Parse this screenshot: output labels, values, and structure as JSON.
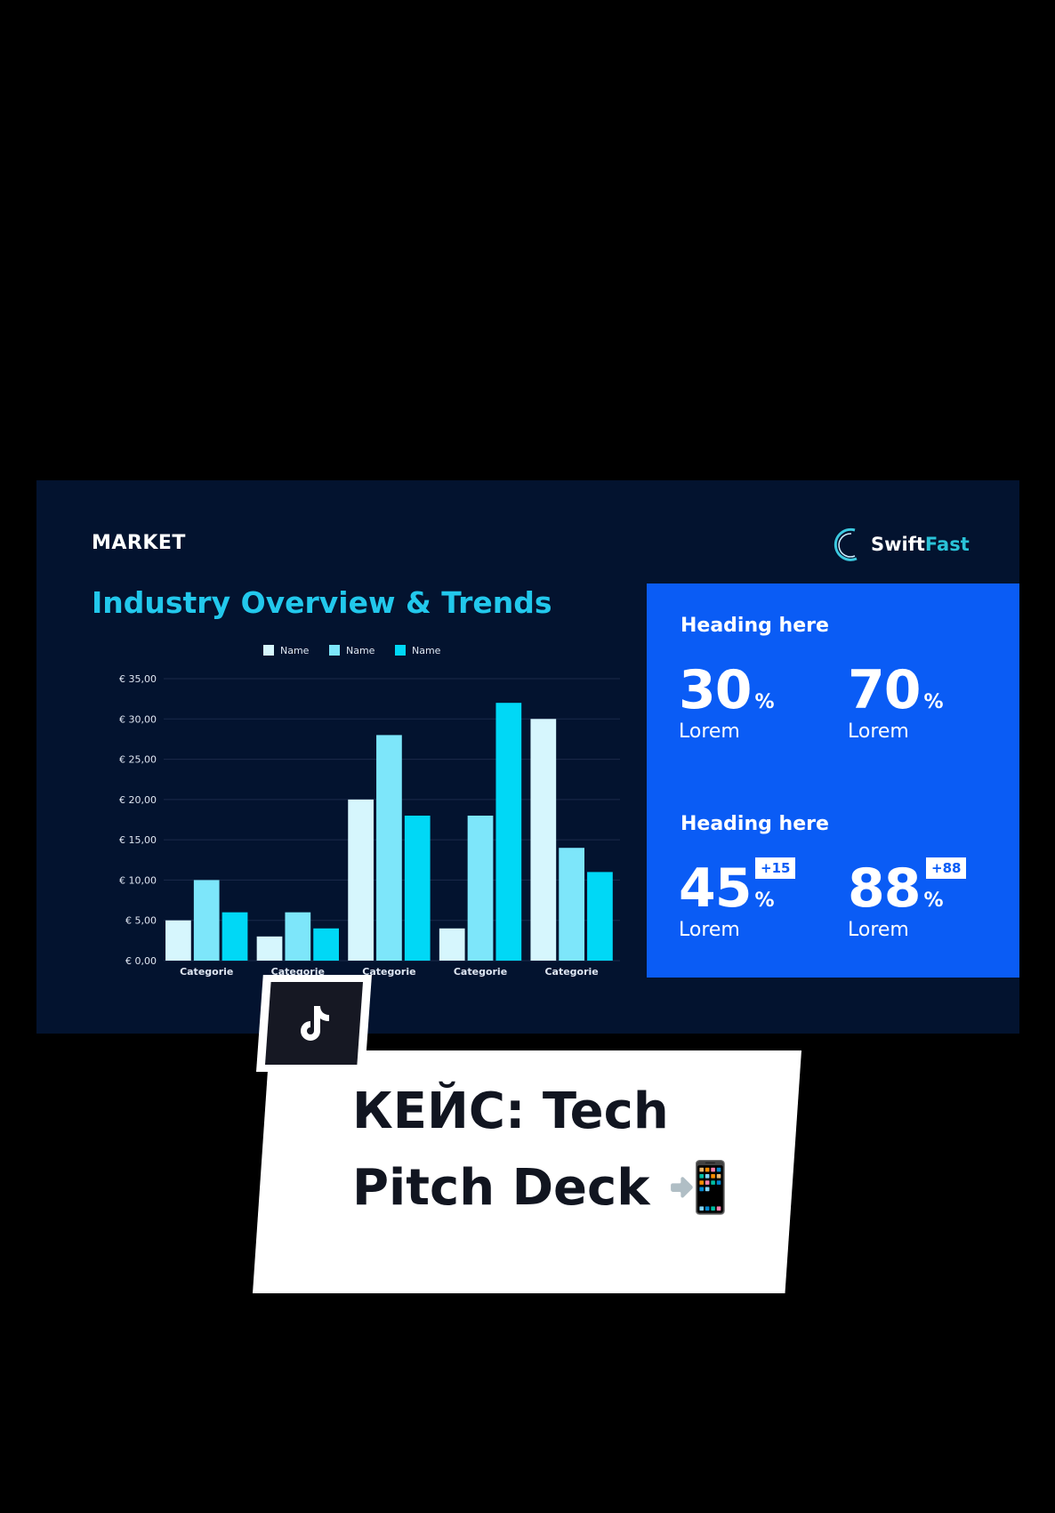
{
  "slide": {
    "section_label": "MARKET",
    "title": "Industry Overview & Trends",
    "logo": {
      "part1": "Swift",
      "part2": "Fast"
    },
    "panel": {
      "groups": [
        {
          "heading": "Heading here",
          "stats": [
            {
              "value": "30",
              "unit": "%",
              "label": "Lorem"
            },
            {
              "value": "70",
              "unit": "%",
              "label": "Lorem"
            }
          ]
        },
        {
          "heading": "Heading here",
          "stats": [
            {
              "value": "45",
              "unit": "%",
              "label": "Lorem",
              "badge": "+15"
            },
            {
              "value": "88",
              "unit": "%",
              "label": "Lorem",
              "badge": "+88"
            }
          ]
        }
      ]
    }
  },
  "caption": {
    "line1": "КЕЙС: Tech",
    "line2": "Pitch Deck 📲"
  },
  "colors": {
    "slide_bg": "#03132f",
    "panel": "#0a5cf5",
    "title": "#22c8ec",
    "series": [
      "#d6f6fd",
      "#7de6fa",
      "#00d8f6"
    ]
  },
  "chart_data": {
    "type": "bar",
    "categories": [
      "Categorie",
      "Categorie",
      "Categorie",
      "Categorie",
      "Categorie"
    ],
    "series": [
      {
        "name": "Name",
        "values": [
          5,
          3,
          20,
          4,
          30
        ]
      },
      {
        "name": "Name",
        "values": [
          10,
          6,
          28,
          18,
          14
        ]
      },
      {
        "name": "Name",
        "values": [
          6,
          4,
          18,
          32,
          11
        ]
      }
    ],
    "yticks": [
      "€ 0,00",
      "€ 5,00",
      "€ 10,00",
      "€ 15,00",
      "€ 20,00",
      "€ 25,00",
      "€ 30,00",
      "€ 35,00"
    ],
    "ylim": [
      0,
      35
    ],
    "grid": true,
    "legend": "top"
  }
}
